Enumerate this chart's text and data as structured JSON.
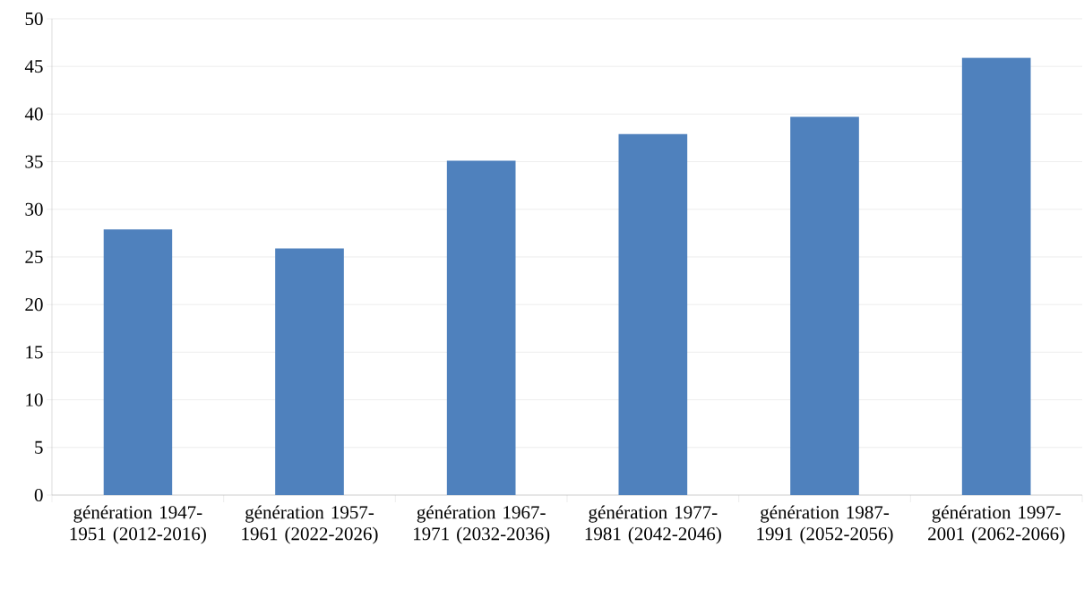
{
  "chart_data": {
    "type": "bar",
    "categories": [
      "génération 1947-1951 (2012-2016)",
      "génération 1957-1961 (2022-2026)",
      "génération 1967-1971 (2032-2036)",
      "génération 1977-1981 (2042-2046)",
      "génération 1987-1991 (2052-2056)",
      "génération 1997-2001 (2062-2066)"
    ],
    "values": [
      27.9,
      25.9,
      35.1,
      37.9,
      39.7,
      45.9
    ],
    "color": "#4f81bd",
    "ylim": [
      0,
      50
    ],
    "yticks": [
      0,
      5,
      10,
      15,
      20,
      25,
      30,
      35,
      40,
      45,
      50
    ],
    "grid": "y"
  }
}
